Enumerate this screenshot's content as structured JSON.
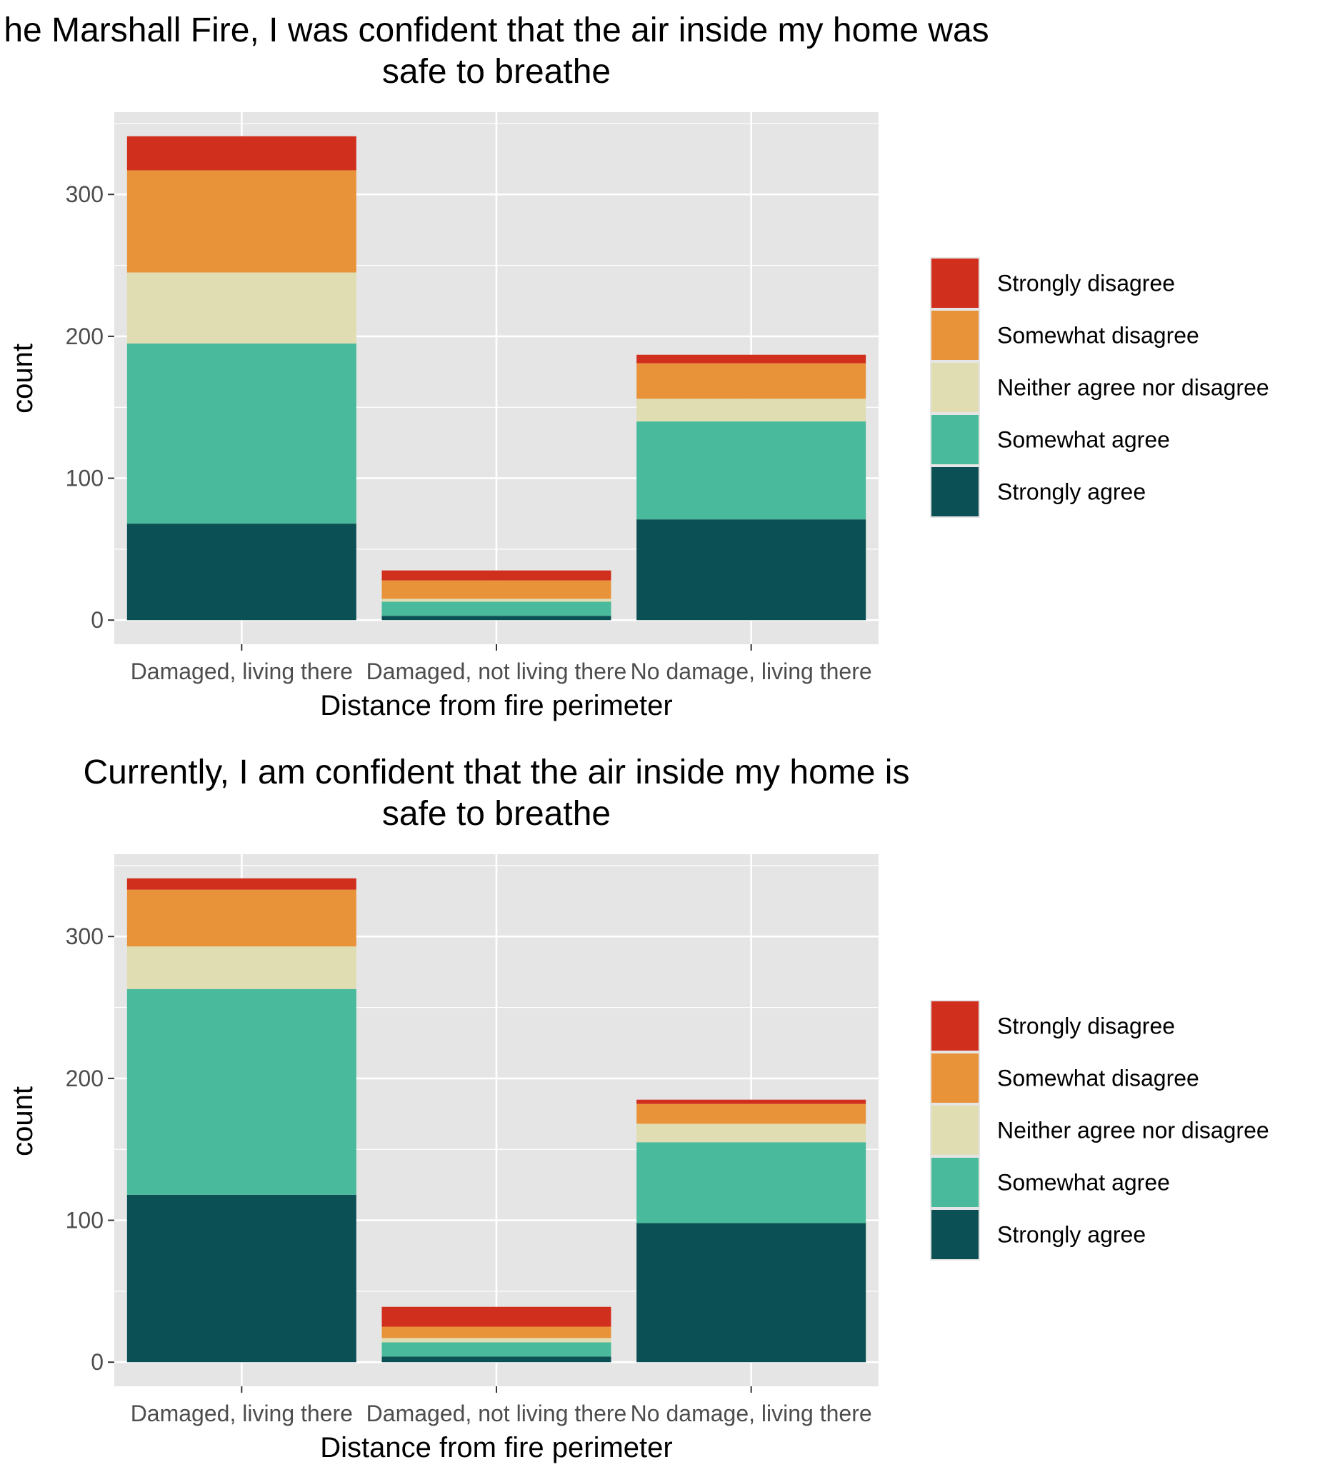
{
  "colors": {
    "Strongly disagree": "#D12F1E",
    "Somewhat disagree": "#E8933A",
    "Neither agree nor disagree": "#E0DDB3",
    "Somewhat agree": "#4ABA9C",
    "Strongly agree": "#0B5055",
    "panel_background": "#E5E5E5",
    "grid": "#FFFFFF",
    "tick_text": "#4D4D4D"
  },
  "chart_data": [
    {
      "type": "bar",
      "stacked": true,
      "title": "he Marshall Fire, I was confident that the air inside my home was",
      "subtitle": "safe to breathe",
      "xlabel": "Distance from fire perimeter",
      "ylabel": "count",
      "categories": [
        "Damaged, living there",
        "Damaged, not living there",
        "No damage, living there"
      ],
      "yticks": [
        0,
        100,
        200,
        300
      ],
      "ylim": [
        -17,
        358
      ],
      "grid": true,
      "legend": "right",
      "series": [
        {
          "name": "Strongly agree",
          "values": [
            68,
            3,
            71
          ]
        },
        {
          "name": "Somewhat agree",
          "values": [
            127,
            10,
            69
          ]
        },
        {
          "name": "Neither agree nor disagree",
          "values": [
            50,
            2,
            16
          ]
        },
        {
          "name": "Somewhat disagree",
          "values": [
            72,
            13,
            25
          ]
        },
        {
          "name": "Strongly disagree",
          "values": [
            24,
            7,
            6
          ]
        }
      ]
    },
    {
      "type": "bar",
      "stacked": true,
      "title": "Currently, I am confident that the air inside my home is",
      "subtitle": "safe to breathe",
      "xlabel": "Distance from fire perimeter",
      "ylabel": "count",
      "categories": [
        "Damaged, living there",
        "Damaged, not living there",
        "No damage, living there"
      ],
      "yticks": [
        0,
        100,
        200,
        300
      ],
      "ylim": [
        -17,
        358
      ],
      "grid": true,
      "legend": "right",
      "series": [
        {
          "name": "Strongly agree",
          "values": [
            118,
            4,
            98
          ]
        },
        {
          "name": "Somewhat agree",
          "values": [
            145,
            10,
            57
          ]
        },
        {
          "name": "Neither agree nor disagree",
          "values": [
            30,
            3,
            13
          ]
        },
        {
          "name": "Somewhat disagree",
          "values": [
            40,
            8,
            14
          ]
        },
        {
          "name": "Strongly disagree",
          "values": [
            8,
            14,
            3
          ]
        }
      ]
    }
  ]
}
